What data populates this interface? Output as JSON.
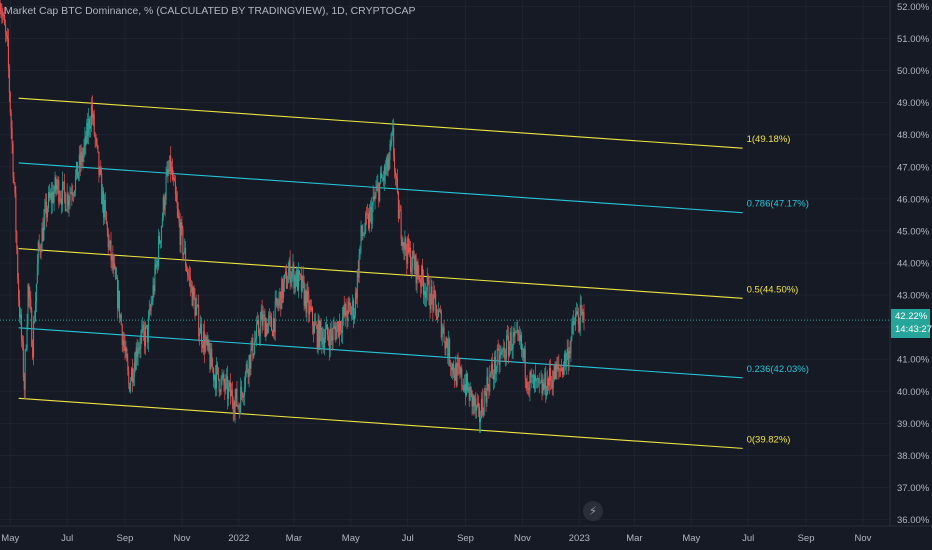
{
  "header": {
    "title": "Market Cap BTC Dominance, % (CALCULATED BY TRADINGVIEW), 1D, CRYPTOCAP"
  },
  "price_badge": {
    "value": "42.22%",
    "countdown": "14:43:27"
  },
  "icons": {
    "flash": "lightning-icon"
  },
  "colors": {
    "background": "#161a25",
    "up": "#26a69a",
    "down": "#ef5350",
    "fib_yellow": "#f0e442",
    "fib_cyan": "#26c6da",
    "axis_text": "#b2b5be"
  },
  "chart_data": {
    "type": "candlestick",
    "y_unit": "%",
    "ylim": [
      35.8,
      52.2
    ],
    "yticks": [
      "52.00%",
      "51.00%",
      "50.00%",
      "49.00%",
      "48.00%",
      "47.00%",
      "46.00%",
      "45.00%",
      "44.00%",
      "43.00%",
      "42.00%",
      "41.00%",
      "40.00%",
      "39.00%",
      "38.00%",
      "37.00%",
      "36.00%"
    ],
    "ytick_values": [
      52,
      51,
      50,
      49,
      48,
      47,
      46,
      45,
      44,
      43,
      42,
      41,
      40,
      39,
      38,
      37,
      36
    ],
    "xlim": [
      "2021-04-20",
      "2023-11-30"
    ],
    "xticks": [
      {
        "date": "2021-05-01",
        "label": "May"
      },
      {
        "date": "2021-07-01",
        "label": "Jul"
      },
      {
        "date": "2021-09-01",
        "label": "Sep"
      },
      {
        "date": "2021-11-01",
        "label": "Nov"
      },
      {
        "date": "2022-01-01",
        "label": "2022"
      },
      {
        "date": "2022-03-01",
        "label": "Mar"
      },
      {
        "date": "2022-05-01",
        "label": "May"
      },
      {
        "date": "2022-07-01",
        "label": "Jul"
      },
      {
        "date": "2022-09-01",
        "label": "Sep"
      },
      {
        "date": "2022-11-01",
        "label": "Nov"
      },
      {
        "date": "2023-01-01",
        "label": "2023"
      },
      {
        "date": "2023-03-01",
        "label": "Mar"
      },
      {
        "date": "2023-05-01",
        "label": "May"
      },
      {
        "date": "2023-07-01",
        "label": "Jul"
      },
      {
        "date": "2023-09-01",
        "label": "Sep"
      },
      {
        "date": "2023-11-01",
        "label": "Nov"
      }
    ],
    "last_price": 42.22,
    "price_path": [
      {
        "date": "2021-04-20",
        "value": 52.3
      },
      {
        "date": "2021-04-28",
        "value": 50.6
      },
      {
        "date": "2021-05-05",
        "value": 46.5
      },
      {
        "date": "2021-05-10",
        "value": 43.0
      },
      {
        "date": "2021-05-13",
        "value": 41.6
      },
      {
        "date": "2021-05-16",
        "value": 40.2
      },
      {
        "date": "2021-05-20",
        "value": 43.2
      },
      {
        "date": "2021-05-25",
        "value": 41.5
      },
      {
        "date": "2021-05-31",
        "value": 44.3
      },
      {
        "date": "2021-06-10",
        "value": 45.8
      },
      {
        "date": "2021-06-20",
        "value": 46.4
      },
      {
        "date": "2021-06-30",
        "value": 46.0
      },
      {
        "date": "2021-07-10",
        "value": 46.6
      },
      {
        "date": "2021-07-20",
        "value": 47.6
      },
      {
        "date": "2021-07-27",
        "value": 48.8
      },
      {
        "date": "2021-08-05",
        "value": 46.6
      },
      {
        "date": "2021-08-15",
        "value": 44.5
      },
      {
        "date": "2021-08-25",
        "value": 42.8
      },
      {
        "date": "2021-09-05",
        "value": 40.2
      },
      {
        "date": "2021-09-15",
        "value": 41.5
      },
      {
        "date": "2021-09-25",
        "value": 41.8
      },
      {
        "date": "2021-10-05",
        "value": 44.0
      },
      {
        "date": "2021-10-15",
        "value": 46.5
      },
      {
        "date": "2021-10-20",
        "value": 47.0
      },
      {
        "date": "2021-10-28",
        "value": 45.3
      },
      {
        "date": "2021-11-08",
        "value": 43.6
      },
      {
        "date": "2021-11-20",
        "value": 42.0
      },
      {
        "date": "2021-12-05",
        "value": 40.6
      },
      {
        "date": "2021-12-20",
        "value": 40.0
      },
      {
        "date": "2022-01-01",
        "value": 39.6
      },
      {
        "date": "2022-01-10",
        "value": 40.8
      },
      {
        "date": "2022-01-25",
        "value": 42.2
      },
      {
        "date": "2022-02-05",
        "value": 42.0
      },
      {
        "date": "2022-02-15",
        "value": 43.0
      },
      {
        "date": "2022-02-25",
        "value": 43.8
      },
      {
        "date": "2022-03-10",
        "value": 43.2
      },
      {
        "date": "2022-03-25",
        "value": 41.8
      },
      {
        "date": "2022-04-10",
        "value": 41.7
      },
      {
        "date": "2022-04-25",
        "value": 42.4
      },
      {
        "date": "2022-05-05",
        "value": 42.6
      },
      {
        "date": "2022-05-12",
        "value": 44.8
      },
      {
        "date": "2022-05-20",
        "value": 45.3
      },
      {
        "date": "2022-05-30",
        "value": 46.3
      },
      {
        "date": "2022-06-10",
        "value": 47.0
      },
      {
        "date": "2022-06-15",
        "value": 47.9
      },
      {
        "date": "2022-06-20",
        "value": 45.8
      },
      {
        "date": "2022-06-28",
        "value": 44.5
      },
      {
        "date": "2022-07-10",
        "value": 43.8
      },
      {
        "date": "2022-07-25",
        "value": 43.0
      },
      {
        "date": "2022-08-05",
        "value": 42.2
      },
      {
        "date": "2022-08-20",
        "value": 40.6
      },
      {
        "date": "2022-08-30",
        "value": 40.3
      },
      {
        "date": "2022-09-10",
        "value": 39.6
      },
      {
        "date": "2022-09-15",
        "value": 39.1
      },
      {
        "date": "2022-09-25",
        "value": 40.3
      },
      {
        "date": "2022-10-05",
        "value": 40.9
      },
      {
        "date": "2022-10-20",
        "value": 41.6
      },
      {
        "date": "2022-10-30",
        "value": 41.4
      },
      {
        "date": "2022-11-08",
        "value": 40.3
      },
      {
        "date": "2022-11-20",
        "value": 40.0
      },
      {
        "date": "2022-12-01",
        "value": 40.4
      },
      {
        "date": "2022-12-12",
        "value": 40.7
      },
      {
        "date": "2022-12-20",
        "value": 41.2
      },
      {
        "date": "2022-12-28",
        "value": 42.3
      },
      {
        "date": "2023-01-06",
        "value": 42.22
      }
    ],
    "fib_channel": {
      "levels": [
        {
          "ratio": 1,
          "label": "1(49.18%)",
          "color": "#f0e442",
          "start": {
            "date": "2021-05-10",
            "value": 49.14
          },
          "end": {
            "date": "2023-06-25",
            "value": 47.58
          }
        },
        {
          "ratio": 0.786,
          "label": "0.786(47.17%)",
          "color": "#26c6da",
          "start": {
            "date": "2021-05-10",
            "value": 47.12
          },
          "end": {
            "date": "2023-06-25",
            "value": 45.57
          }
        },
        {
          "ratio": 0.5,
          "label": "0.5(44.50%)",
          "color": "#f0e442",
          "start": {
            "date": "2021-05-10",
            "value": 44.45
          },
          "end": {
            "date": "2023-06-25",
            "value": 42.9
          }
        },
        {
          "ratio": 0.236,
          "label": "0.236(42.03%)",
          "color": "#26c6da",
          "start": {
            "date": "2021-05-10",
            "value": 41.98
          },
          "end": {
            "date": "2023-06-25",
            "value": 40.42
          }
        },
        {
          "ratio": 0,
          "label": "0(39.82%)",
          "color": "#f0e442",
          "start": {
            "date": "2021-05-10",
            "value": 39.78
          },
          "end": {
            "date": "2023-06-25",
            "value": 38.22
          }
        }
      ]
    }
  }
}
